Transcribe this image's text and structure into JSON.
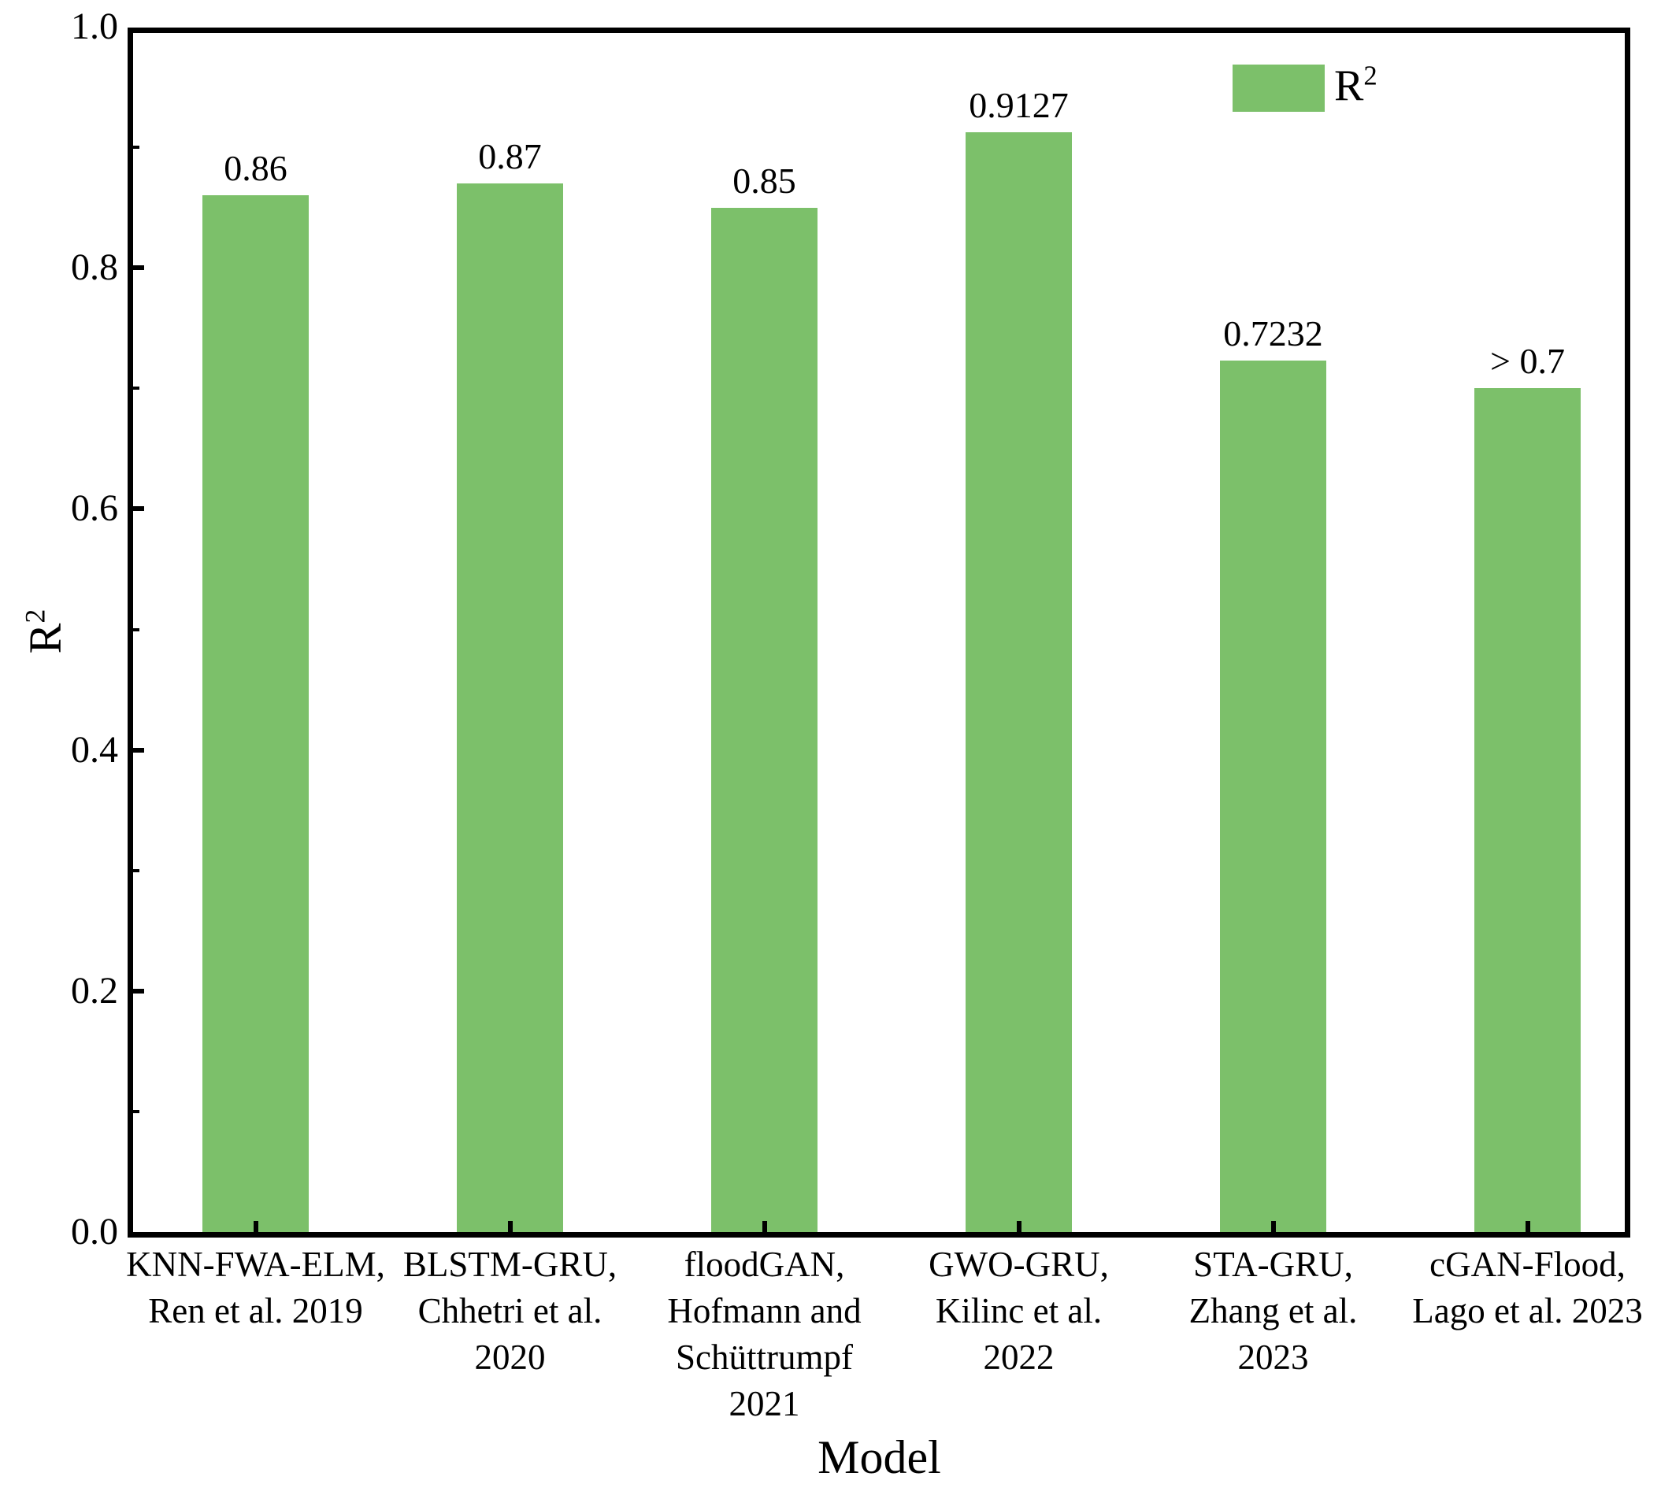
{
  "chart_data": {
    "type": "bar",
    "title": "",
    "xlabel": "Model",
    "ylabel_base": "R",
    "ylabel_sup": "2",
    "legend": {
      "label_base": "R",
      "label_sup": "2",
      "position": "upper right"
    },
    "categories": [
      "KNN-FWA-ELM, Ren et al. 2019",
      "BLSTM-GRU, Chhetri et al. 2020",
      "floodGAN, Hofmann and Schüttrumpf 2021",
      "GWO-GRU, Kilinc et al. 2022",
      "STA-GRU, Zhang et al. 2023",
      "cGAN-Flood, Lago et al. 2023"
    ],
    "category_lines": [
      [
        "KNN-FWA-ELM,",
        "Ren et al. 2019"
      ],
      [
        "BLSTM-GRU,",
        "Chhetri et al.",
        "2020"
      ],
      [
        "floodGAN,",
        "Hofmann and",
        "Schüttrumpf",
        "2021"
      ],
      [
        "GWO-GRU,",
        "Kilinc et al.",
        "2022"
      ],
      [
        "STA-GRU,",
        "Zhang et al.",
        "2023"
      ],
      [
        "cGAN-Flood,",
        "Lago et al. 2023"
      ]
    ],
    "values": [
      0.86,
      0.87,
      0.85,
      0.9127,
      0.7232,
      0.7
    ],
    "bar_labels": [
      "0.86",
      "0.87",
      "0.85",
      "0.9127",
      "0.7232",
      "> 0.7"
    ],
    "ylim": [
      0.0,
      1.0
    ],
    "yticks": [
      0.0,
      0.2,
      0.4,
      0.6,
      0.8,
      1.0
    ],
    "ytick_labels": [
      "0.0",
      "0.2",
      "0.4",
      "0.6",
      "0.8",
      "1.0"
    ],
    "minor_yticks": [
      0.1,
      0.3,
      0.5,
      0.7,
      0.9
    ],
    "grid": false,
    "bar_color": "#7CC06A",
    "axis_color": "#000000",
    "text_color": "#000000",
    "background_color": "#ffffff"
  }
}
